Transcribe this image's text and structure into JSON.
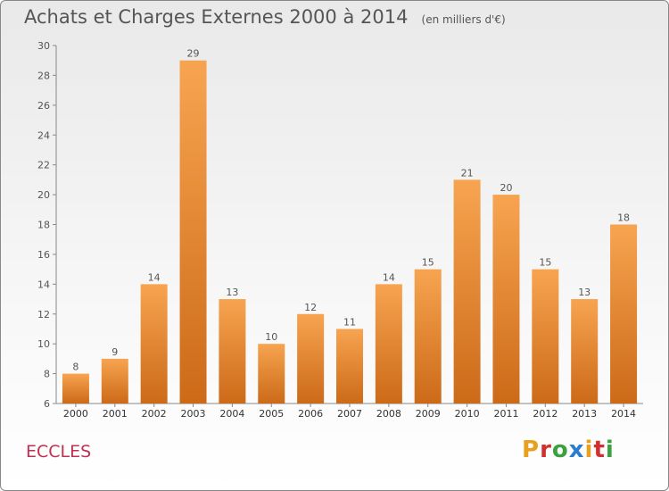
{
  "title": "Achats et Charges Externes 2000 à 2014",
  "subtitle": "(en milliers d'€)",
  "commune": "ECCLES",
  "logo": {
    "text": "Proxiti",
    "letter_colors": [
      "#e8a020",
      "#d03030",
      "#3aa040",
      "#2a7cd0",
      "#e8a020",
      "#d03030",
      "#3aa040"
    ]
  },
  "colors": {
    "bar_top": "#f7a450",
    "bar_bottom": "#cc6a18",
    "axis": "#888888",
    "text": "#555555",
    "commune": "#c03050"
  },
  "chart_data": {
    "type": "bar",
    "categories": [
      "2000",
      "2001",
      "2002",
      "2003",
      "2004",
      "2005",
      "2006",
      "2007",
      "2008",
      "2009",
      "2010",
      "2011",
      "2012",
      "2013",
      "2014"
    ],
    "values": [
      8,
      9,
      14,
      29,
      13,
      10,
      12,
      11,
      14,
      15,
      21,
      20,
      15,
      13,
      18
    ],
    "ylim": [
      6,
      30
    ],
    "yticks": [
      6,
      8,
      10,
      12,
      14,
      16,
      18,
      20,
      22,
      24,
      26,
      28,
      30
    ],
    "grid": false,
    "legend": "none"
  }
}
